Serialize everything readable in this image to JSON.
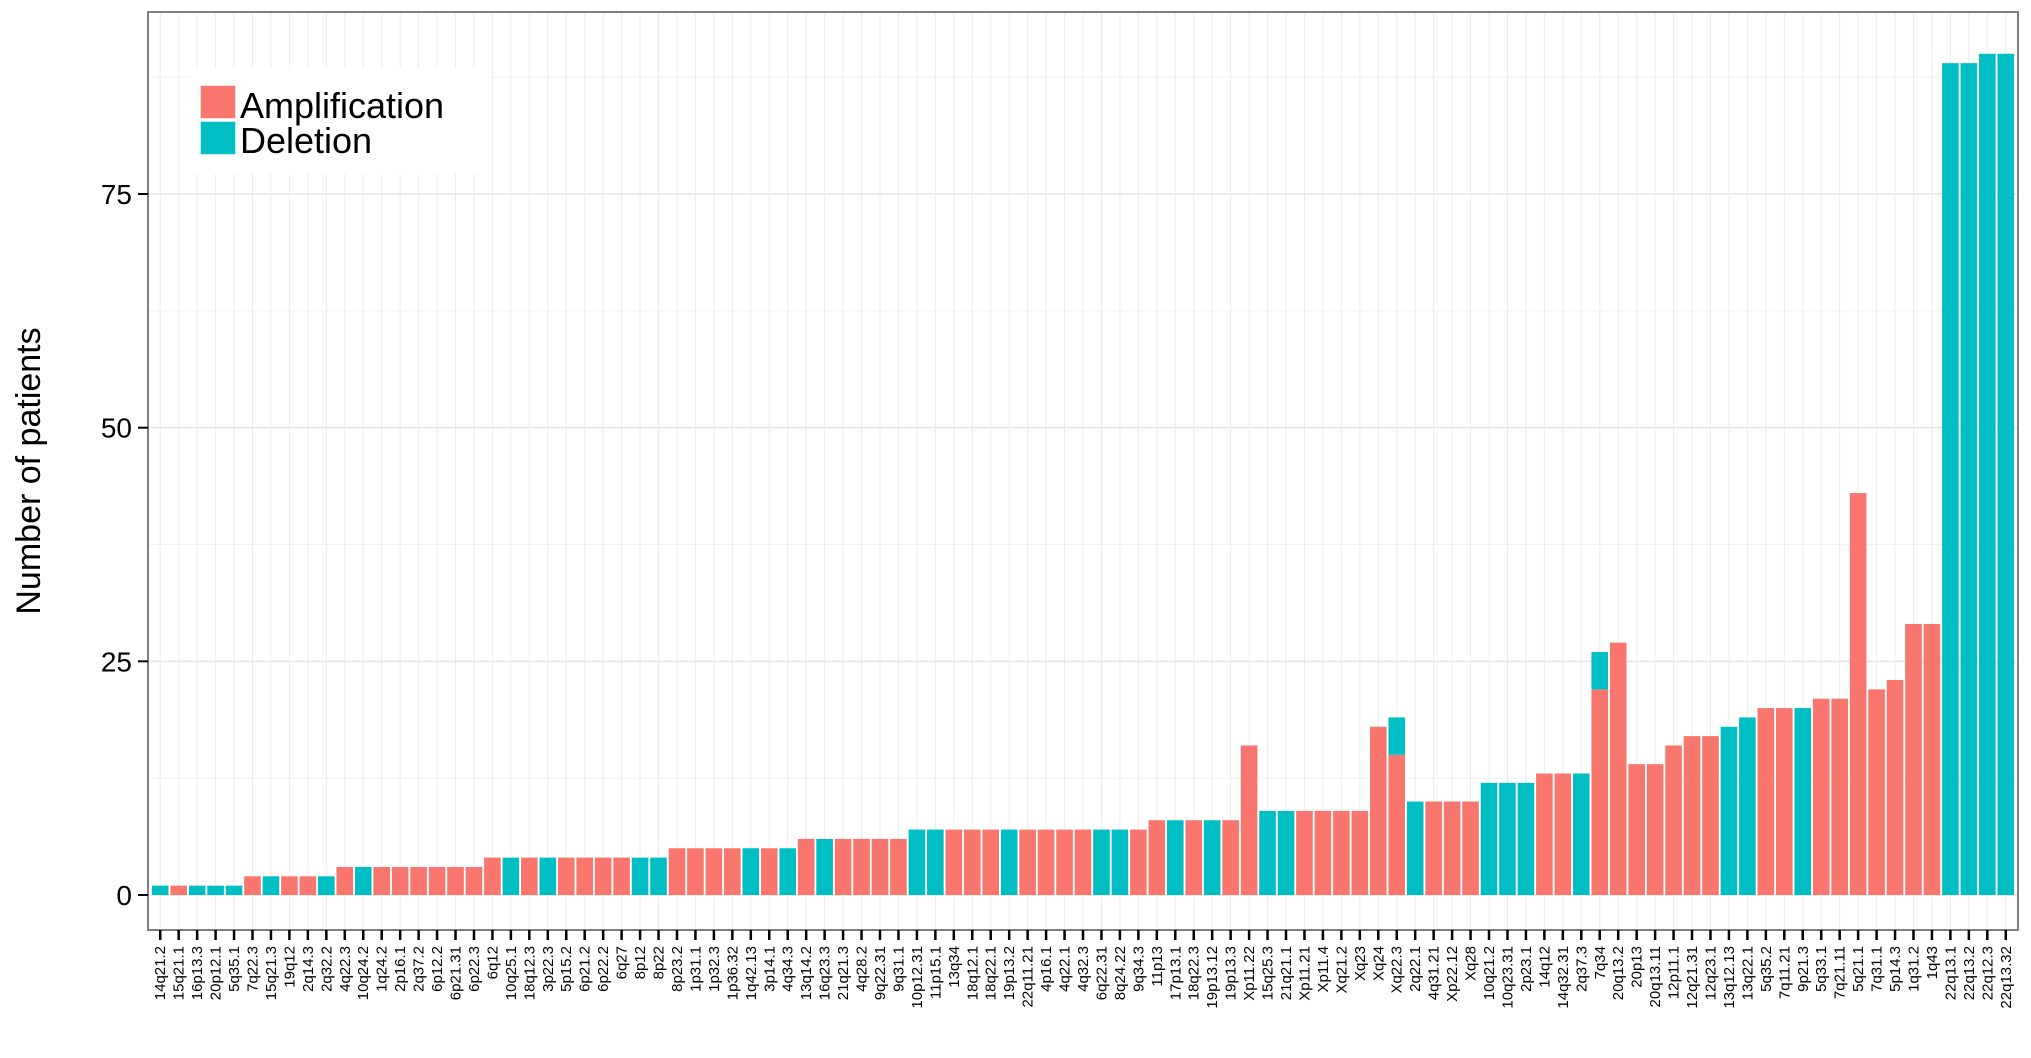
{
  "chart_data": {
    "type": "bar",
    "stacked": true,
    "ylabel": "Number of patients",
    "xlabel": "",
    "ylim": [
      0,
      92
    ],
    "yticks": [
      0,
      25,
      50,
      75
    ],
    "grid": true,
    "legend_position": "top-left",
    "categories": [
      "14q21.2",
      "15q21.1",
      "16p13.3",
      "20p12.1",
      "5q35.1",
      "7q22.3",
      "15q21.3",
      "19q12",
      "2q14.3",
      "2q32.2",
      "4q22.3",
      "10q24.2",
      "1q24.2",
      "2p16.1",
      "2q37.2",
      "6p12.2",
      "6p21.31",
      "6p22.3",
      "6q12",
      "10q25.1",
      "18q12.3",
      "3p22.3",
      "5p15.2",
      "6p21.2",
      "6p22.2",
      "6q27",
      "8p12",
      "8p22",
      "8p23.2",
      "1p31.1",
      "1p32.3",
      "1p36.32",
      "1q42.13",
      "3p14.1",
      "4q34.3",
      "13q14.2",
      "16q23.3",
      "21q21.3",
      "4q28.2",
      "9q22.31",
      "9q31.1",
      "10p12.31",
      "11p15.1",
      "13q34",
      "18q12.1",
      "18q22.1",
      "19p13.2",
      "22q11.21",
      "4p16.1",
      "4q22.1",
      "4q32.3",
      "6q22.31",
      "8q24.22",
      "9q34.3",
      "11p13",
      "17p13.1",
      "18q22.3",
      "19p13.12",
      "19p13.3",
      "Xp11.22",
      "15q25.3",
      "21q21.1",
      "Xp11.21",
      "Xp11.4",
      "Xq21.2",
      "Xq23",
      "Xq24",
      "Xq22.3",
      "2q22.1",
      "4q31.21",
      "Xp22.12",
      "Xq28",
      "10q21.2",
      "10q23.31",
      "2p23.1",
      "14q12",
      "14q32.31",
      "2q37.3",
      "7q34",
      "20q13.2",
      "20p13",
      "20q13.11",
      "12p11.1",
      "12q21.31",
      "12q23.1",
      "13q12.13",
      "13q22.1",
      "5q35.2",
      "7q11.21",
      "9p21.3",
      "5q33.1",
      "7q21.11",
      "5q21.1",
      "7q31.1",
      "5p14.3",
      "1q31.2",
      "1q43",
      "22q13.1",
      "22q13.2",
      "22q12.3",
      "22q13.32"
    ],
    "series": [
      {
        "name": "Amplification",
        "color": "#F8766D",
        "values": [
          0,
          1,
          0,
          0,
          0,
          2,
          0,
          2,
          2,
          0,
          3,
          0,
          3,
          3,
          3,
          3,
          3,
          3,
          4,
          0,
          4,
          0,
          4,
          4,
          4,
          4,
          0,
          0,
          5,
          5,
          5,
          5,
          0,
          5,
          0,
          6,
          0,
          6,
          6,
          6,
          6,
          0,
          0,
          7,
          7,
          7,
          0,
          7,
          7,
          7,
          7,
          0,
          0,
          7,
          8,
          0,
          8,
          0,
          8,
          16,
          0,
          0,
          9,
          9,
          9,
          9,
          18,
          15,
          0,
          10,
          10,
          10,
          0,
          0,
          0,
          13,
          13,
          0,
          22,
          27,
          14,
          14,
          16,
          17,
          17,
          0,
          0,
          20,
          20,
          0,
          21,
          21,
          43,
          22,
          23,
          29,
          29,
          0,
          0,
          0,
          0
        ]
      },
      {
        "name": "Deletion",
        "color": "#00BFC4",
        "values": [
          1,
          0,
          1,
          1,
          1,
          0,
          2,
          0,
          0,
          2,
          0,
          3,
          0,
          0,
          0,
          0,
          0,
          0,
          0,
          4,
          0,
          4,
          0,
          0,
          0,
          0,
          4,
          4,
          0,
          0,
          0,
          0,
          5,
          0,
          5,
          0,
          6,
          0,
          0,
          0,
          0,
          7,
          7,
          0,
          0,
          0,
          7,
          0,
          0,
          0,
          0,
          7,
          7,
          0,
          0,
          8,
          0,
          8,
          0,
          0,
          9,
          9,
          0,
          0,
          0,
          0,
          0,
          4,
          10,
          0,
          0,
          0,
          12,
          12,
          12,
          0,
          0,
          13,
          4,
          0,
          0,
          0,
          0,
          0,
          0,
          18,
          19,
          0,
          0,
          20,
          0,
          0,
          0,
          0,
          0,
          0,
          0,
          89,
          89,
          90,
          90
        ]
      }
    ]
  }
}
